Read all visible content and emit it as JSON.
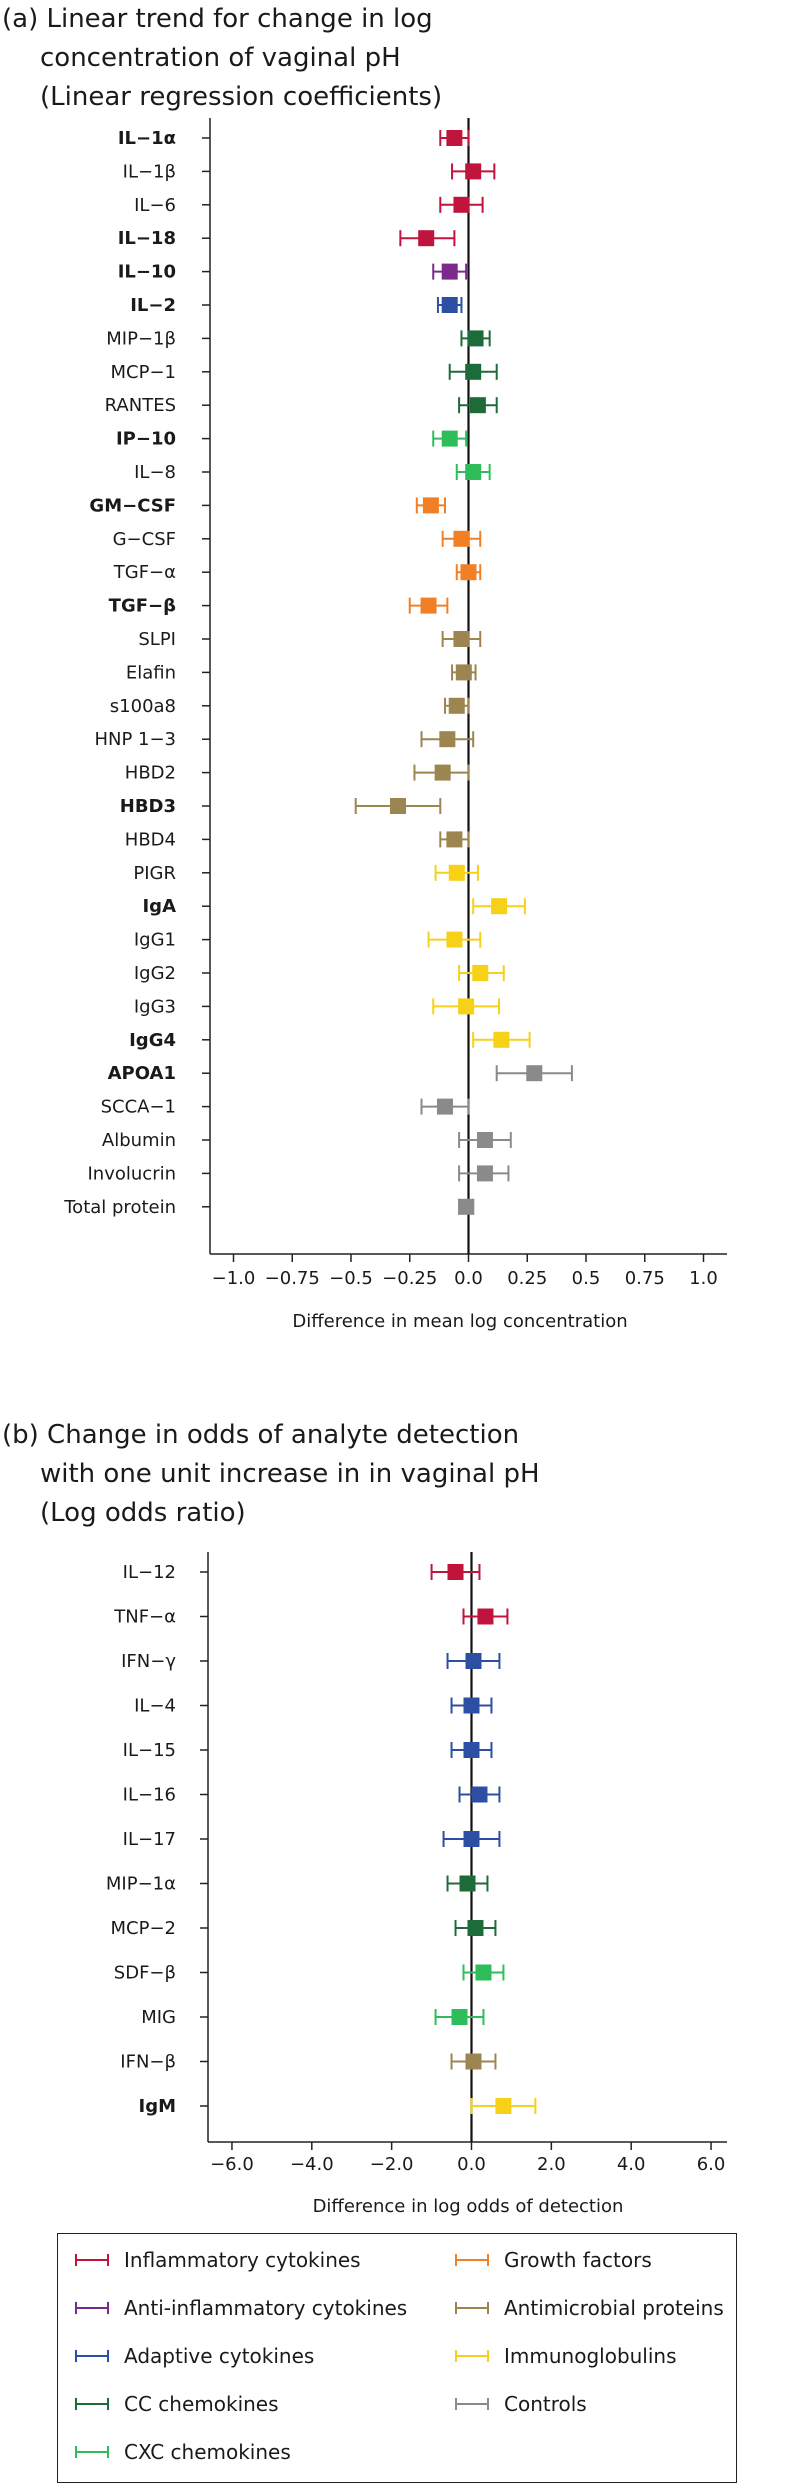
{
  "panel_a": {
    "title_line1": "(a) Linear trend for change in log",
    "title_line2": "concentration of vaginal pH",
    "title_line3": "(Linear regression coefficients)"
  },
  "panel_b": {
    "title_line1": "(b) Change in odds of analyte detection",
    "title_line2": "with one unit increase in in vaginal pH",
    "title_line3": "(Log odds ratio)"
  },
  "legend": {
    "items": [
      {
        "label": "Inflammatory cytokines",
        "color": "#c0143c"
      },
      {
        "label": "Anti-inflammatory cytokines",
        "color": "#7b2a8c"
      },
      {
        "label": "Adaptive cytokines",
        "color": "#2d4fa3"
      },
      {
        "label": "CC chemokines",
        "color": "#1e6b3a"
      },
      {
        "label": "CXC chemokines",
        "color": "#2ebd5a"
      },
      {
        "label": "Growth factors",
        "color": "#f07f25"
      },
      {
        "label": "Antimicrobial proteins",
        "color": "#9c8550"
      },
      {
        "label": "Immunoglobulins",
        "color": "#f7d117"
      },
      {
        "label": "Controls",
        "color": "#8a8a8a"
      }
    ]
  },
  "chart_data": [
    {
      "type": "forest",
      "title": "(a) Linear trend for change in log concentration of vaginal pH (Linear regression coefficients)",
      "xlabel": "Difference in mean log concentration",
      "xlim": [
        -1.1,
        1.1
      ],
      "xticks": [
        -1.0,
        -0.75,
        -0.5,
        -0.25,
        0.0,
        0.25,
        0.5,
        0.75,
        1.0
      ],
      "xtick_labels": [
        "−1.0",
        "−0.75",
        "−0.5",
        "−0.25",
        "0.0",
        "0.25",
        "0.5",
        "0.75",
        "1.0"
      ],
      "rows": [
        {
          "label": "IL−1α",
          "bold": true,
          "est": -0.06,
          "lo": -0.12,
          "hi": 0.0,
          "group": "Inflammatory cytokines"
        },
        {
          "label": "IL−1β",
          "bold": false,
          "est": 0.02,
          "lo": -0.07,
          "hi": 0.11,
          "group": "Inflammatory cytokines"
        },
        {
          "label": "IL−6",
          "bold": false,
          "est": -0.03,
          "lo": -0.12,
          "hi": 0.06,
          "group": "Inflammatory cytokines"
        },
        {
          "label": "IL−18",
          "bold": true,
          "est": -0.18,
          "lo": -0.29,
          "hi": -0.06,
          "group": "Inflammatory cytokines"
        },
        {
          "label": "IL−10",
          "bold": true,
          "est": -0.08,
          "lo": -0.15,
          "hi": -0.01,
          "group": "Anti-inflammatory cytokines"
        },
        {
          "label": "IL−2",
          "bold": true,
          "est": -0.08,
          "lo": -0.13,
          "hi": -0.03,
          "group": "Adaptive cytokines"
        },
        {
          "label": "MIP−1β",
          "bold": false,
          "est": 0.03,
          "lo": -0.03,
          "hi": 0.09,
          "group": "CC chemokines"
        },
        {
          "label": "MCP−1",
          "bold": false,
          "est": 0.02,
          "lo": -0.08,
          "hi": 0.12,
          "group": "CC chemokines"
        },
        {
          "label": "RANTES",
          "bold": false,
          "est": 0.04,
          "lo": -0.04,
          "hi": 0.12,
          "group": "CC chemokines"
        },
        {
          "label": "IP−10",
          "bold": true,
          "est": -0.08,
          "lo": -0.15,
          "hi": -0.01,
          "group": "CXC chemokines"
        },
        {
          "label": "IL−8",
          "bold": false,
          "est": 0.02,
          "lo": -0.05,
          "hi": 0.09,
          "group": "CXC chemokines"
        },
        {
          "label": "GM−CSF",
          "bold": true,
          "est": -0.16,
          "lo": -0.22,
          "hi": -0.1,
          "group": "Growth factors"
        },
        {
          "label": "G−CSF",
          "bold": false,
          "est": -0.03,
          "lo": -0.11,
          "hi": 0.05,
          "group": "Growth factors"
        },
        {
          "label": "TGF−α",
          "bold": false,
          "est": 0.0,
          "lo": -0.05,
          "hi": 0.05,
          "group": "Growth factors"
        },
        {
          "label": "TGF−β",
          "bold": true,
          "est": -0.17,
          "lo": -0.25,
          "hi": -0.09,
          "group": "Growth factors"
        },
        {
          "label": "SLPI",
          "bold": false,
          "est": -0.03,
          "lo": -0.11,
          "hi": 0.05,
          "group": "Antimicrobial proteins"
        },
        {
          "label": "Elafin",
          "bold": false,
          "est": -0.02,
          "lo": -0.07,
          "hi": 0.03,
          "group": "Antimicrobial proteins"
        },
        {
          "label": "s100a8",
          "bold": false,
          "est": -0.05,
          "lo": -0.1,
          "hi": 0.0,
          "group": "Antimicrobial proteins"
        },
        {
          "label": "HNP 1−3",
          "bold": false,
          "est": -0.09,
          "lo": -0.2,
          "hi": 0.02,
          "group": "Antimicrobial proteins"
        },
        {
          "label": "HBD2",
          "bold": false,
          "est": -0.11,
          "lo": -0.23,
          "hi": 0.0,
          "group": "Antimicrobial proteins"
        },
        {
          "label": "HBD3",
          "bold": true,
          "est": -0.3,
          "lo": -0.48,
          "hi": -0.12,
          "group": "Antimicrobial proteins"
        },
        {
          "label": "HBD4",
          "bold": false,
          "est": -0.06,
          "lo": -0.12,
          "hi": 0.0,
          "group": "Antimicrobial proteins"
        },
        {
          "label": "PIGR",
          "bold": false,
          "est": -0.05,
          "lo": -0.14,
          "hi": 0.04,
          "group": "Immunoglobulins"
        },
        {
          "label": "IgA",
          "bold": true,
          "est": 0.13,
          "lo": 0.02,
          "hi": 0.24,
          "group": "Immunoglobulins"
        },
        {
          "label": "IgG1",
          "bold": false,
          "est": -0.06,
          "lo": -0.17,
          "hi": 0.05,
          "group": "Immunoglobulins"
        },
        {
          "label": "IgG2",
          "bold": false,
          "est": 0.05,
          "lo": -0.04,
          "hi": 0.15,
          "group": "Immunoglobulins"
        },
        {
          "label": "IgG3",
          "bold": false,
          "est": -0.01,
          "lo": -0.15,
          "hi": 0.13,
          "group": "Immunoglobulins"
        },
        {
          "label": "IgG4",
          "bold": true,
          "est": 0.14,
          "lo": 0.02,
          "hi": 0.26,
          "group": "Immunoglobulins"
        },
        {
          "label": "APOA1",
          "bold": true,
          "est": 0.28,
          "lo": 0.12,
          "hi": 0.44,
          "group": "Controls"
        },
        {
          "label": "SCCA−1",
          "bold": false,
          "est": -0.1,
          "lo": -0.2,
          "hi": 0.0,
          "group": "Controls"
        },
        {
          "label": "Albumin",
          "bold": false,
          "est": 0.07,
          "lo": -0.04,
          "hi": 0.18,
          "group": "Controls"
        },
        {
          "label": "Involucrin",
          "bold": false,
          "est": 0.07,
          "lo": -0.04,
          "hi": 0.17,
          "group": "Controls"
        },
        {
          "label": "Total protein",
          "bold": false,
          "est": -0.01,
          "lo": -0.04,
          "hi": 0.02,
          "group": "Controls"
        }
      ]
    },
    {
      "type": "forest",
      "title": "(b) Change in odds of analyte detection with one unit increase in in vaginal pH (Log odds ratio)",
      "xlabel": "Difference in log odds of detection",
      "xlim": [
        -6.6,
        6.4
      ],
      "xticks": [
        -6.0,
        -4.0,
        -2.0,
        0.0,
        2.0,
        4.0,
        6.0
      ],
      "xtick_labels": [
        "−6.0",
        "−4.0",
        "−2.0",
        "0.0",
        "2.0",
        "4.0",
        "6.0"
      ],
      "rows": [
        {
          "label": "IL−12",
          "bold": false,
          "est": -0.4,
          "lo": -1.0,
          "hi": 0.2,
          "group": "Inflammatory cytokines"
        },
        {
          "label": "TNF−α",
          "bold": false,
          "est": 0.35,
          "lo": -0.2,
          "hi": 0.9,
          "group": "Inflammatory cytokines"
        },
        {
          "label": "IFN−γ",
          "bold": false,
          "est": 0.05,
          "lo": -0.6,
          "hi": 0.7,
          "group": "Adaptive cytokines"
        },
        {
          "label": "IL−4",
          "bold": false,
          "est": 0.0,
          "lo": -0.5,
          "hi": 0.5,
          "group": "Adaptive cytokines"
        },
        {
          "label": "IL−15",
          "bold": false,
          "est": 0.0,
          "lo": -0.5,
          "hi": 0.5,
          "group": "Adaptive cytokines"
        },
        {
          "label": "IL−16",
          "bold": false,
          "est": 0.2,
          "lo": -0.3,
          "hi": 0.7,
          "group": "Adaptive cytokines"
        },
        {
          "label": "IL−17",
          "bold": false,
          "est": 0.0,
          "lo": -0.7,
          "hi": 0.7,
          "group": "Adaptive cytokines"
        },
        {
          "label": "MIP−1α",
          "bold": false,
          "est": -0.1,
          "lo": -0.6,
          "hi": 0.4,
          "group": "CC chemokines"
        },
        {
          "label": "MCP−2",
          "bold": false,
          "est": 0.1,
          "lo": -0.4,
          "hi": 0.6,
          "group": "CC chemokines"
        },
        {
          "label": "SDF−β",
          "bold": false,
          "est": 0.3,
          "lo": -0.2,
          "hi": 0.8,
          "group": "CXC chemokines"
        },
        {
          "label": "MIG",
          "bold": false,
          "est": -0.3,
          "lo": -0.9,
          "hi": 0.3,
          "group": "CXC chemokines"
        },
        {
          "label": "IFN−β",
          "bold": false,
          "est": 0.05,
          "lo": -0.5,
          "hi": 0.6,
          "group": "Antimicrobial proteins"
        },
        {
          "label": "IgM",
          "bold": true,
          "est": 0.8,
          "lo": 0.0,
          "hi": 1.6,
          "group": "Immunoglobulins"
        }
      ]
    }
  ]
}
